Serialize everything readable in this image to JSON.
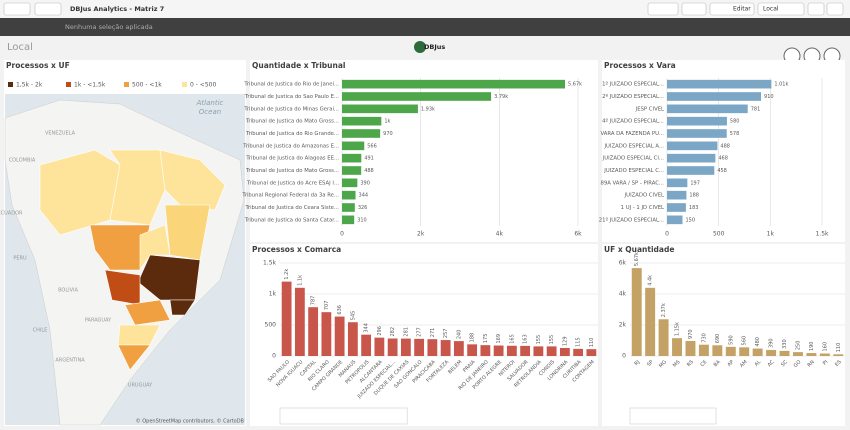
{
  "app": {
    "title": "DBJus Analytics - Matriz 7",
    "edit": "Editar",
    "bookmark": "Local",
    "selection": "Nenhuma seleção aplicada",
    "sheet": "Local",
    "logo": "DBJus"
  },
  "chart_data": [
    {
      "type": "map",
      "title": "Processos x UF",
      "legend": [
        {
          "label": "1,5k - 2k",
          "color": "#5c2a0c"
        },
        {
          "label": "1k - <1,5k",
          "color": "#c04d15"
        },
        {
          "label": "500 - <1k",
          "color": "#f0a040"
        },
        {
          "label": "0 - <500",
          "color": "#fde49a"
        }
      ],
      "map_labels": [
        "Atlantic",
        "Ocean",
        "VENEZUELA",
        "COLOMBIA",
        "ECUADOR",
        "PERU",
        "BOLIVIA",
        "PARAGUAY",
        "CHILE",
        "ARGENTINA",
        "URUGUAY"
      ],
      "attribution": "© OpenStreetMap contributors, © CartoDB"
    },
    {
      "type": "hbar",
      "title": "Quantidade x Tribunal",
      "color": "#4ea64a",
      "categories": [
        "Tribunal de Justica do Rio de Janei...",
        "Tribunal de Justica do Sao Paulo E...",
        "Tribunal de Justica do Minas Gerai...",
        "Tribunal de Justica do Mato Gross...",
        "Tribunal de Justica do Rio Grande...",
        "Tribunal de Justica do Amazonas E...",
        "Tribunal de Justica do Alagoas EE...",
        "Tribunal de Justica do Mato Gross...",
        "Tribunal de Justica do Acre ESAJ I...",
        "Tribunal Regional Federal da 3a Re...",
        "Tribunal de Justica do Ceara Siste...",
        "Tribunal de Justica do Santa Catar..."
      ],
      "values": [
        5670,
        3790,
        1930,
        1000,
        970,
        566,
        491,
        488,
        390,
        344,
        326,
        310
      ],
      "value_labels": [
        "5.67k",
        "3.79k",
        "1.93k",
        "1k",
        "970",
        "566",
        "491",
        "488",
        "390",
        "344",
        "326",
        "310"
      ],
      "xlim": [
        0,
        6000
      ],
      "xticks": [
        0,
        {
          "value": 2000,
          "label": "2k"
        },
        {
          "value": 4000,
          "label": "4k"
        },
        {
          "value": 6000,
          "label": "6k"
        }
      ]
    },
    {
      "type": "hbar",
      "title": "Processos x Vara",
      "color": "#7ba6c6",
      "categories": [
        "1º JUIZADO ESPECIAL...",
        "2º JUIZADO ESPECIAL...",
        "JESP CIVEL",
        "4º JUIZADO ESPECIAL...",
        "VARA DA FAZENDA PU...",
        "JUIZADO ESPECIAL A...",
        "JUIZADO ESPECIAL CI...",
        "JUIZADO ESPECIAL C...",
        "89A VARA / SP - PIRAC...",
        "JUIZADO CIVEL",
        "1 UJ - 1 JD CIVEL",
        "21º JUIZADO ESPECIAL..."
      ],
      "values": [
        1010,
        910,
        781,
        580,
        578,
        488,
        468,
        458,
        197,
        188,
        183,
        150
      ],
      "value_labels": [
        "1.01k",
        "910",
        "781",
        "580",
        "578",
        "488",
        "468",
        "458",
        "197",
        "188",
        "183",
        "150"
      ],
      "xlim": [
        0,
        1500
      ],
      "xticks": [
        0,
        500,
        {
          "value": 1000,
          "label": "1k"
        },
        {
          "value": 1500,
          "label": "1.5k"
        }
      ]
    },
    {
      "type": "vbar",
      "title": "Processos x Comarca",
      "color": "#c8564b",
      "categories": [
        "SAO PAULO",
        "NOVA IGUACU",
        "CAPITAL",
        "RIO CLARO",
        "CAMPO GRANDE",
        "MANAUS",
        "PETROPOLIS",
        "ALCANTARA",
        "JUIZADO ESPECIAL...",
        "DUQUE DE CAXIAS",
        "SAO GONCALO",
        "PIRACICABA",
        "FORTALEZA",
        "BELEM",
        "PRAIA",
        "RIO DE JANEIRO",
        "PORTO ALEGRE",
        "NITEROI",
        "SALVADOR",
        "RETROLANDIA",
        "CONDIS",
        "LONDRINA",
        "CURITIBA",
        "CONTAGEM"
      ],
      "values": [
        1200,
        1100,
        787,
        707,
        636,
        545,
        344,
        296,
        282,
        281,
        277,
        271,
        257,
        240,
        188,
        175,
        169,
        165,
        163,
        155,
        155,
        129,
        115,
        110
      ],
      "value_labels": [
        "1.2k",
        "1.1k",
        "787",
        "707",
        "636",
        "545",
        "344",
        "296",
        "282",
        "281",
        "277",
        "271",
        "257",
        "240",
        "188",
        "175",
        "169",
        "165",
        "163",
        "155",
        "155",
        "129",
        "115",
        "110"
      ],
      "ylim": [
        0,
        1500
      ],
      "yticks": [
        0,
        500,
        {
          "value": 1000,
          "label": "1k"
        },
        {
          "value": 1500,
          "label": "1.5k"
        }
      ]
    },
    {
      "type": "vbar",
      "title": "UF x Quantidade",
      "color": "#c4a265",
      "categories": [
        "RJ",
        "SP",
        "MG",
        "MS",
        "RS",
        "CE",
        "BA",
        "AP",
        "AM",
        "AL",
        "AC",
        "SC",
        "GO",
        "RN",
        "PI",
        "ES"
      ],
      "values": [
        5670,
        4400,
        2370,
        1150,
        970,
        730,
        690,
        590,
        560,
        480,
        390,
        330,
        250,
        190,
        160,
        110
      ],
      "value_labels": [
        "5.67k",
        "4.4k",
        "2.37k",
        "1.15k",
        "970",
        "730",
        "690",
        "590",
        "560",
        "480",
        "390",
        "330",
        "250",
        "190",
        "160",
        "110"
      ],
      "ylim": [
        0,
        6000
      ],
      "yticks": [
        0,
        {
          "value": 2000,
          "label": "2k"
        },
        {
          "value": 4000,
          "label": "4k"
        },
        {
          "value": 6000,
          "label": "6k"
        }
      ]
    }
  ]
}
